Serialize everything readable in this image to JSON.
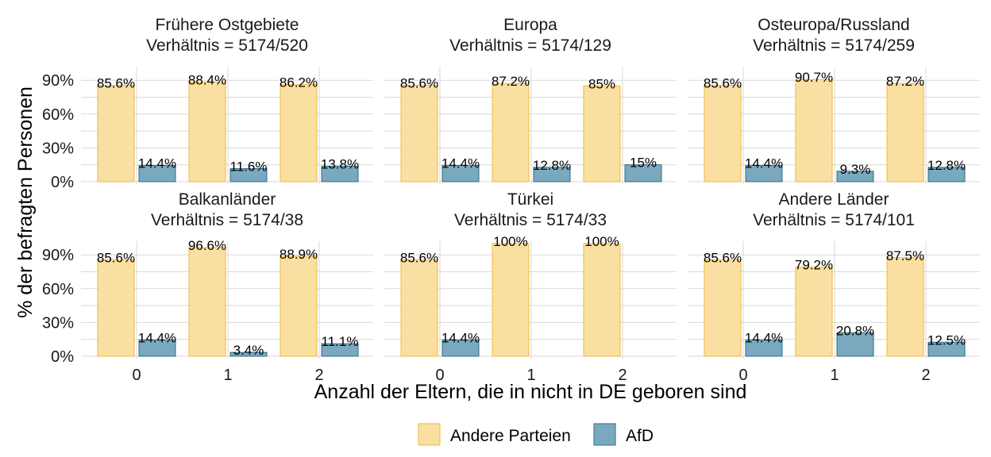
{
  "chart_data": {
    "type": "bar",
    "ylabel": "% der befragten Personen",
    "xlabel": "Anzahl der Eltern, die in nicht in DE geboren sind",
    "ylim": [
      0,
      100
    ],
    "y_ticks": [
      0,
      30,
      60,
      90
    ],
    "y_tick_labels": [
      "0%",
      "30%",
      "60%",
      "90%"
    ],
    "categories": [
      "0",
      "1",
      "2"
    ],
    "legend": {
      "placement": "bottom",
      "entries": [
        {
          "name": "Andere Parteien",
          "color": "#fadfa3",
          "border": "#f2b937"
        },
        {
          "name": "AfD",
          "color": "#7aa9bf",
          "border": "#2f6b85"
        }
      ]
    },
    "grid": true,
    "facets": [
      {
        "title": "Frühere Ostgebiete",
        "subtitle": "Verhältnis = 5174/520",
        "series": [
          {
            "name": "Andere Parteien",
            "values": [
              85.6,
              88.4,
              86.2
            ],
            "labels": [
              "85.6%",
              "88.4%",
              "86.2%"
            ]
          },
          {
            "name": "AfD",
            "values": [
              14.4,
              11.6,
              13.8
            ],
            "labels": [
              "14.4%",
              "11.6%",
              "13.8%"
            ]
          }
        ]
      },
      {
        "title": "Europa",
        "subtitle": "Verhältnis = 5174/129",
        "series": [
          {
            "name": "Andere Parteien",
            "values": [
              85.6,
              87.2,
              85
            ],
            "labels": [
              "85.6%",
              "87.2%",
              "85%"
            ]
          },
          {
            "name": "AfD",
            "values": [
              14.4,
              12.8,
              15
            ],
            "labels": [
              "14.4%",
              "12.8%",
              "15%"
            ]
          }
        ]
      },
      {
        "title": "Osteuropa/Russland",
        "subtitle": "Verhältnis = 5174/259",
        "series": [
          {
            "name": "Andere Parteien",
            "values": [
              85.6,
              90.7,
              87.2
            ],
            "labels": [
              "85.6%",
              "90.7%",
              "87.2%"
            ]
          },
          {
            "name": "AfD",
            "values": [
              14.4,
              9.3,
              12.8
            ],
            "labels": [
              "14.4%",
              "9.3%",
              "12.8%"
            ]
          }
        ]
      },
      {
        "title": "Balkanländer",
        "subtitle": "Verhältnis = 5174/38",
        "series": [
          {
            "name": "Andere Parteien",
            "values": [
              85.6,
              96.6,
              88.9
            ],
            "labels": [
              "85.6%",
              "96.6%",
              "88.9%"
            ]
          },
          {
            "name": "AfD",
            "values": [
              14.4,
              3.4,
              11.1
            ],
            "labels": [
              "14.4%",
              "3.4%",
              "11.1%"
            ]
          }
        ]
      },
      {
        "title": "Türkei",
        "subtitle": "Verhältnis = 5174/33",
        "series": [
          {
            "name": "Andere Parteien",
            "values": [
              85.6,
              100,
              100
            ],
            "labels": [
              "85.6%",
              "100%",
              "100%"
            ]
          },
          {
            "name": "AfD",
            "values": [
              14.4,
              null,
              null
            ],
            "labels": [
              "14.4%",
              null,
              null
            ]
          }
        ]
      },
      {
        "title": "Andere Länder",
        "subtitle": "Verhältnis = 5174/101",
        "series": [
          {
            "name": "Andere Parteien",
            "values": [
              85.6,
              79.2,
              87.5
            ],
            "labels": [
              "85.6%",
              "79.2%",
              "87.5%"
            ]
          },
          {
            "name": "AfD",
            "values": [
              14.4,
              20.8,
              12.5
            ],
            "labels": [
              "14.4%",
              "20.8%",
              "12.5%"
            ]
          }
        ]
      }
    ]
  }
}
